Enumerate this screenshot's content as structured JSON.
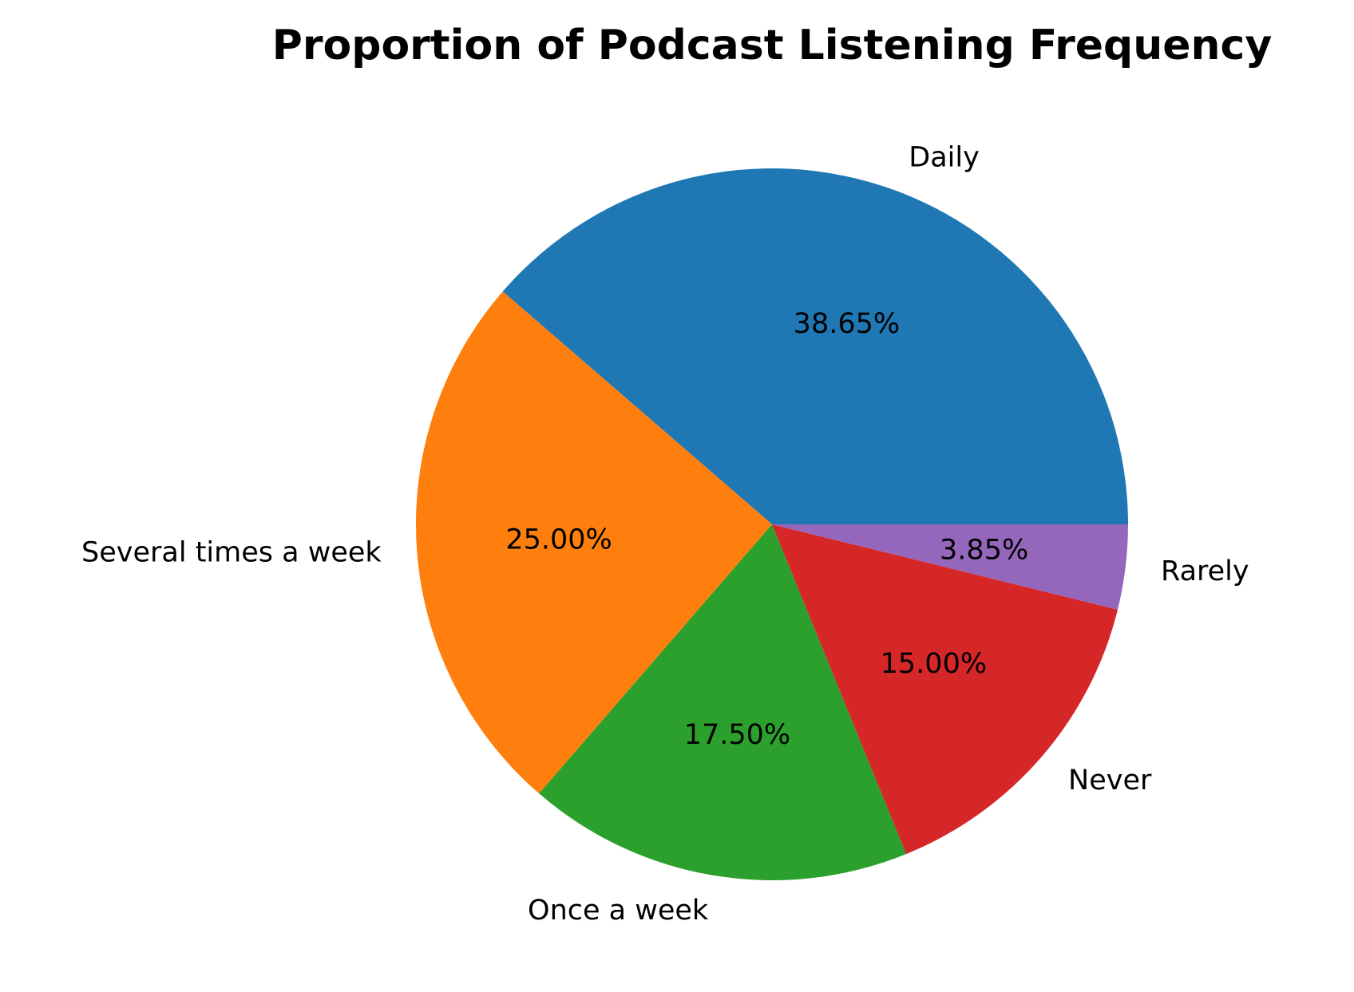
{
  "chart_data": {
    "type": "pie",
    "title": "Proportion of Podcast Listening Frequency",
    "categories": [
      "Daily",
      "Several times a week",
      "Once a week",
      "Never",
      "Rarely"
    ],
    "values": [
      38.65,
      25.0,
      17.5,
      15.0,
      3.85
    ],
    "value_labels": [
      "38.65%",
      "25.00%",
      "17.50%",
      "15.00%",
      "3.85%"
    ],
    "colors": [
      "#1f77b4",
      "#ff7f0e",
      "#2ca02c",
      "#d62728",
      "#9467bd"
    ],
    "start_angle_deg": 0,
    "direction": "counterclockwise",
    "legend": "none"
  }
}
